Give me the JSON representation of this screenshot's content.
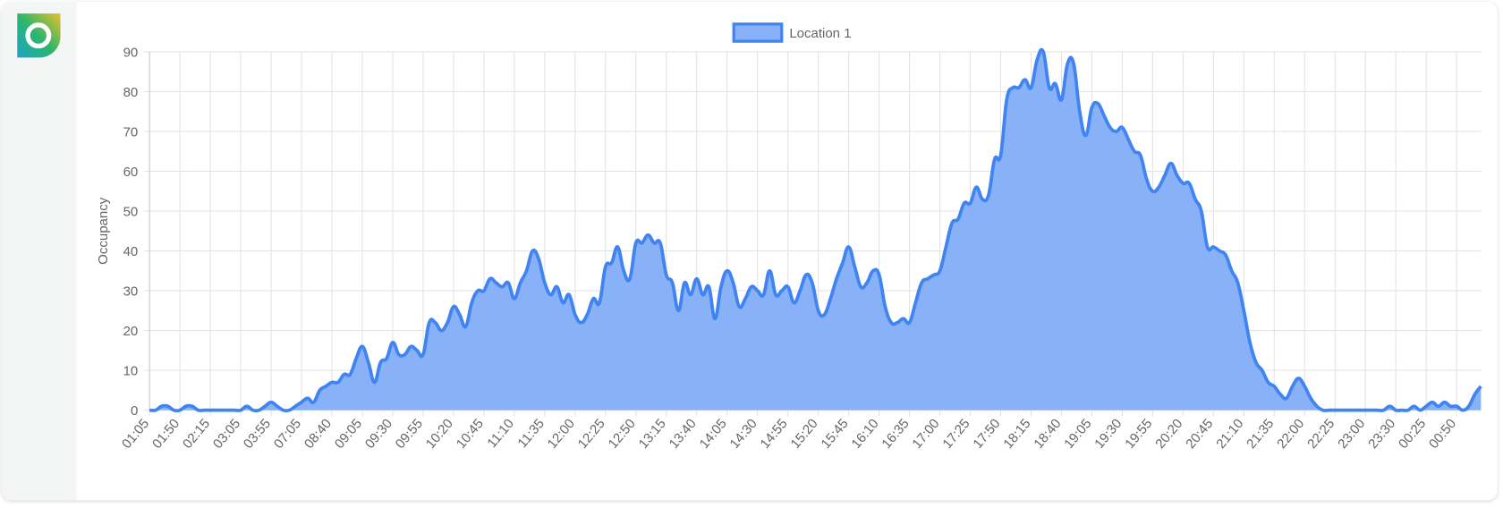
{
  "chart_data": {
    "type": "line",
    "fill": true,
    "ylabel": "Occupancy",
    "categories": [
      "01:05",
      null,
      null,
      null,
      null,
      "01:50",
      null,
      null,
      null,
      null,
      "02:15",
      null,
      null,
      null,
      null,
      "03:05",
      null,
      null,
      null,
      null,
      "03:55",
      null,
      null,
      null,
      null,
      "07:05",
      null,
      null,
      null,
      null,
      "08:40",
      null,
      null,
      null,
      null,
      "09:05",
      null,
      null,
      null,
      null,
      "09:30",
      null,
      null,
      null,
      null,
      "09:55",
      null,
      null,
      null,
      null,
      "10:20",
      null,
      null,
      null,
      null,
      "10:45",
      null,
      null,
      null,
      null,
      "11:10",
      null,
      null,
      null,
      null,
      "11:35",
      null,
      null,
      null,
      null,
      "12:00",
      null,
      null,
      null,
      null,
      "12:25",
      null,
      null,
      null,
      null,
      "12:50",
      null,
      null,
      null,
      null,
      "13:15",
      null,
      null,
      null,
      null,
      "13:40",
      null,
      null,
      null,
      null,
      "14:05",
      null,
      null,
      null,
      null,
      "14:30",
      null,
      null,
      null,
      null,
      "14:55",
      null,
      null,
      null,
      null,
      "15:20",
      null,
      null,
      null,
      null,
      "15:45",
      null,
      null,
      null,
      null,
      "16:10",
      null,
      null,
      null,
      null,
      "16:35",
      null,
      null,
      null,
      null,
      "17:00",
      null,
      null,
      null,
      null,
      "17:25",
      null,
      null,
      null,
      null,
      "17:50",
      null,
      null,
      null,
      null,
      "18:15",
      null,
      null,
      null,
      null,
      "18:40",
      null,
      null,
      null,
      null,
      "19:05",
      null,
      null,
      null,
      null,
      "19:30",
      null,
      null,
      null,
      null,
      "19:55",
      null,
      null,
      null,
      null,
      "20:20",
      null,
      null,
      null,
      null,
      "20:45",
      null,
      null,
      null,
      null,
      "21:10",
      null,
      null,
      null,
      null,
      "21:35",
      null,
      null,
      null,
      null,
      "22:00",
      null,
      null,
      null,
      null,
      "22:25",
      null,
      null,
      null,
      null,
      "23:00",
      null,
      null,
      null,
      null,
      "23:30",
      null,
      null,
      null,
      null,
      "00:25",
      null,
      null,
      null,
      null,
      "00:50",
      null,
      null,
      null,
      null
    ],
    "series": [
      {
        "name": "Location 1",
        "color": "#3f84f1",
        "fill_color": "#88b1f8",
        "values": [
          0,
          0,
          1,
          1,
          0,
          0,
          1,
          1,
          0,
          0,
          0,
          0,
          0,
          0,
          0,
          0,
          1,
          0,
          0,
          1,
          2,
          1,
          0,
          0,
          1,
          2,
          3,
          2,
          5,
          6,
          7,
          7,
          9,
          9,
          13,
          16,
          12,
          7,
          12,
          13,
          17,
          14,
          14,
          16,
          15,
          14,
          22,
          22,
          20,
          22,
          26,
          24,
          21,
          27,
          30,
          30,
          33,
          32,
          31,
          32,
          28,
          32,
          35,
          40,
          38,
          32,
          29,
          31,
          27,
          29,
          24,
          22,
          24,
          28,
          27,
          36,
          37,
          41,
          35,
          33,
          42,
          42,
          44,
          42,
          42,
          34,
          32,
          25,
          32,
          29,
          33,
          29,
          31,
          23,
          31,
          35,
          32,
          26,
          28,
          31,
          30,
          29,
          35,
          29,
          30,
          31,
          27,
          30,
          34,
          32,
          25,
          24,
          28,
          33,
          37,
          41,
          36,
          31,
          32,
          35,
          34,
          26,
          22,
          22,
          23,
          22,
          27,
          32,
          33,
          34,
          35,
          41,
          47,
          48,
          52,
          52,
          56,
          53,
          54,
          63,
          64,
          78,
          81,
          81,
          83,
          81,
          88,
          90,
          81,
          82,
          78,
          87,
          87,
          75,
          69,
          76,
          77,
          74,
          71,
          70,
          71,
          68,
          65,
          64,
          58,
          55,
          56,
          59,
          62,
          59,
          57,
          57,
          53,
          50,
          41,
          41,
          40,
          39,
          35,
          32,
          25,
          17,
          12,
          10,
          7,
          6,
          4,
          3,
          6,
          8,
          6,
          3,
          1,
          0,
          0,
          0,
          0,
          0,
          0,
          0,
          0,
          0,
          0,
          0,
          1,
          0,
          0,
          0,
          1,
          0,
          1,
          2,
          1,
          2,
          1,
          1,
          0,
          1,
          4,
          6
        ]
      }
    ],
    "ylim": [
      0,
      90
    ],
    "yticks": [
      0,
      10,
      20,
      30,
      40,
      50,
      60,
      70,
      80,
      90
    ],
    "grid": true,
    "legend": "top"
  }
}
